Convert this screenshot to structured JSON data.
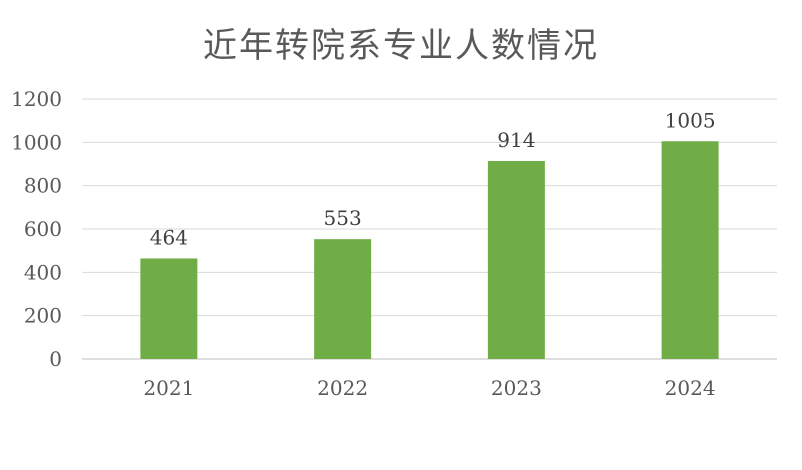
{
  "chart_data": {
    "type": "bar",
    "title": "近年转院系专业人数情况",
    "categories": [
      "2021",
      "2022",
      "2023",
      "2024"
    ],
    "values": [
      464,
      553,
      914,
      1005
    ],
    "xlabel": "",
    "ylabel": "",
    "ylim": [
      0,
      1200
    ],
    "yticks": [
      0,
      200,
      400,
      600,
      800,
      1000,
      1200
    ],
    "grid": true,
    "legend": "none",
    "bar_color": "#70AD47",
    "data_labels": true
  }
}
